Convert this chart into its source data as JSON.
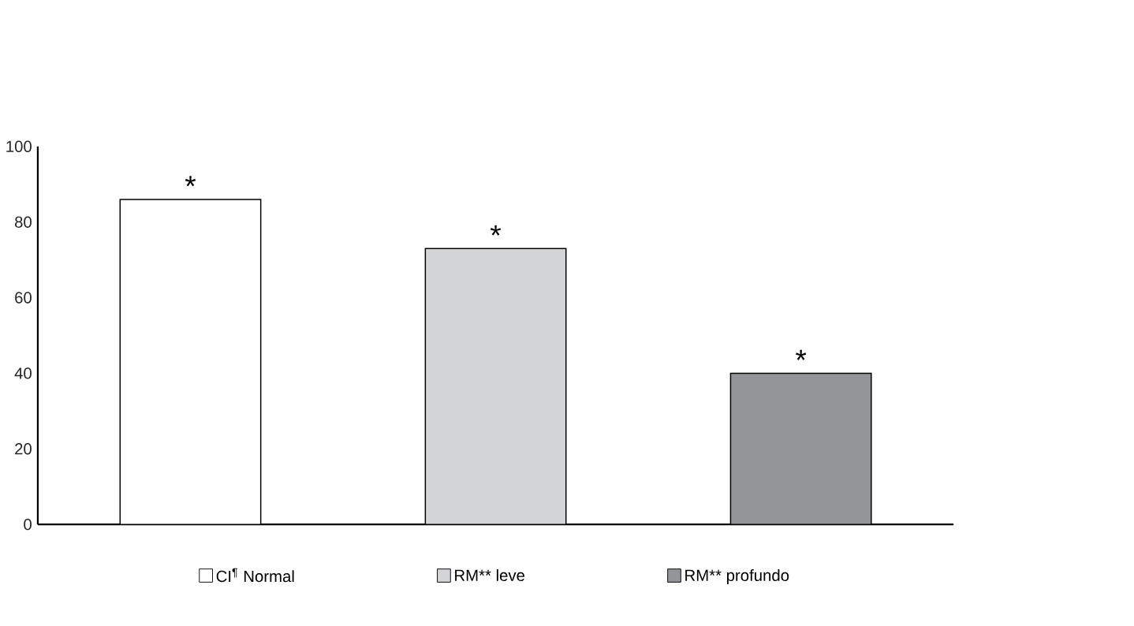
{
  "chart_data": {
    "type": "bar",
    "categories": [
      null,
      null,
      null
    ],
    "series": [
      {
        "name": "CI$^{¶}$ Normal",
        "color": "#ffffff",
        "values": [
          86,
          null,
          null
        ]
      },
      {
        "name": "RM** leve",
        "color": "#d3d4d6",
        "values": [
          null,
          73,
          null
        ]
      },
      {
        "name": "RM** profundo",
        "color": "#949598",
        "values": [
          null,
          null,
          40
        ]
      }
    ],
    "ylim": [
      0,
      100
    ],
    "yticks": [
      0,
      20,
      40,
      60,
      80,
      100
    ],
    "legend": "bottom",
    "annotations": [
      {
        "text": "*",
        "y": 86
      },
      {
        "text": "*",
        "y": 73
      },
      {
        "text": "*",
        "y": 40
      }
    ]
  }
}
